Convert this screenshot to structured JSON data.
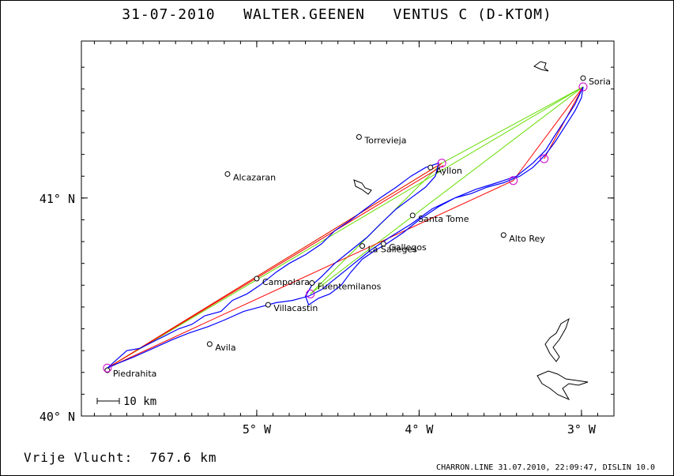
{
  "header": {
    "title": "31-07-2010   WALTER.GEENEN   VENTUS C (D-KTOM)"
  },
  "map": {
    "lon_range": [
      -6.08,
      -2.8
    ],
    "lat_range": [
      40.0,
      41.72
    ],
    "lat_ticks": [
      {
        "value": 41.0,
        "label": "41° N"
      },
      {
        "value": 40.0,
        "label": "40° N"
      }
    ],
    "lon_ticks": [
      {
        "value": -5.0,
        "label": "5° W"
      },
      {
        "value": -4.0,
        "label": "4° W"
      },
      {
        "value": -3.0,
        "label": "3° W"
      }
    ],
    "scale_label": "10 km",
    "colors": {
      "track": "#0000ff",
      "task_leg": "#ff0000",
      "optimized_leg": "#66dd00",
      "turnpoint": "#cc00cc",
      "frame": "#000000"
    },
    "towns": [
      {
        "name": "Soria",
        "lon": -2.99,
        "lat": 41.55
      },
      {
        "name": "Torrevieja",
        "lon": -4.37,
        "lat": 41.28
      },
      {
        "name": "Alcazaran",
        "lon": -5.18,
        "lat": 41.11
      },
      {
        "name": "Ayllon",
        "lon": -3.93,
        "lat": 41.14
      },
      {
        "name": "Santa Tome",
        "lon": -4.04,
        "lat": 40.92
      },
      {
        "name": "Alto Rey",
        "lon": -3.48,
        "lat": 40.83
      },
      {
        "name": "La Salleges",
        "lon": -4.35,
        "lat": 40.78
      },
      {
        "name": "Gallegos",
        "lon": -4.22,
        "lat": 40.79
      },
      {
        "name": "Campolara",
        "lon": -5.0,
        "lat": 40.63
      },
      {
        "name": "Fuentemilanos",
        "lon": -4.66,
        "lat": 40.61
      },
      {
        "name": "Villacastin",
        "lon": -4.93,
        "lat": 40.51
      },
      {
        "name": "Avila",
        "lon": -5.29,
        "lat": 40.33
      },
      {
        "name": "Piedrahita",
        "lon": -5.92,
        "lat": 40.21
      }
    ],
    "turnpoints": [
      {
        "lon": -5.92,
        "lat": 40.22
      },
      {
        "lon": -3.86,
        "lat": 41.16
      },
      {
        "lon": -2.99,
        "lat": 41.51
      },
      {
        "lon": -3.23,
        "lat": 41.18
      },
      {
        "lon": -3.42,
        "lat": 41.08
      },
      {
        "lon": -4.67,
        "lat": 40.56
      }
    ],
    "task_lines": [
      [
        [
          -5.92,
          40.22
        ],
        [
          -3.86,
          41.16
        ]
      ],
      [
        [
          -5.92,
          40.22
        ],
        [
          -3.85,
          41.15
        ]
      ],
      [
        [
          -5.92,
          40.22
        ],
        [
          -3.42,
          41.08
        ]
      ],
      [
        [
          -3.42,
          41.08
        ],
        [
          -2.99,
          41.51
        ]
      ],
      [
        [
          -3.23,
          41.18
        ],
        [
          -2.99,
          41.51
        ]
      ]
    ],
    "optimized_lines": [
      [
        [
          -5.92,
          40.22
        ],
        [
          -2.99,
          41.51
        ]
      ],
      [
        [
          -5.92,
          40.22
        ],
        [
          -3.86,
          41.16
        ]
      ],
      [
        [
          -3.86,
          41.16
        ],
        [
          -2.99,
          41.51
        ]
      ],
      [
        [
          -4.67,
          40.56
        ],
        [
          -3.86,
          41.16
        ]
      ],
      [
        [
          -4.67,
          40.56
        ],
        [
          -2.99,
          41.51
        ]
      ]
    ],
    "track": [
      [
        -5.92,
        40.22
      ],
      [
        -5.86,
        40.26
      ],
      [
        -5.8,
        40.3
      ],
      [
        -5.72,
        40.31
      ],
      [
        -5.64,
        40.34
      ],
      [
        -5.56,
        40.37
      ],
      [
        -5.48,
        40.4
      ],
      [
        -5.4,
        40.42
      ],
      [
        -5.32,
        40.46
      ],
      [
        -5.22,
        40.48
      ],
      [
        -5.15,
        40.53
      ],
      [
        -5.06,
        40.56
      ],
      [
        -4.98,
        40.6
      ],
      [
        -4.88,
        40.66
      ],
      [
        -4.8,
        40.7
      ],
      [
        -4.7,
        40.74
      ],
      [
        -4.6,
        40.79
      ],
      [
        -4.52,
        40.85
      ],
      [
        -4.42,
        40.9
      ],
      [
        -4.33,
        40.95
      ],
      [
        -4.24,
        41.0
      ],
      [
        -4.14,
        41.05
      ],
      [
        -4.05,
        41.1
      ],
      [
        -3.96,
        41.14
      ],
      [
        -3.88,
        41.16
      ],
      [
        -3.9,
        41.1
      ],
      [
        -3.96,
        41.05
      ],
      [
        -4.05,
        41.0
      ],
      [
        -4.14,
        40.95
      ],
      [
        -4.24,
        40.88
      ],
      [
        -4.32,
        40.82
      ],
      [
        -4.42,
        40.76
      ],
      [
        -4.52,
        40.7
      ],
      [
        -4.6,
        40.64
      ],
      [
        -4.66,
        40.6
      ],
      [
        -4.7,
        40.55
      ],
      [
        -4.68,
        40.51
      ],
      [
        -4.62,
        40.54
      ],
      [
        -4.55,
        40.56
      ],
      [
        -4.48,
        40.6
      ],
      [
        -4.42,
        40.66
      ],
      [
        -4.35,
        40.72
      ],
      [
        -4.27,
        40.76
      ],
      [
        -4.2,
        40.79
      ],
      [
        -4.1,
        40.84
      ],
      [
        -4.0,
        40.9
      ],
      [
        -3.88,
        40.96
      ],
      [
        -3.78,
        41.0
      ],
      [
        -3.68,
        41.02
      ],
      [
        -3.58,
        41.05
      ],
      [
        -3.48,
        41.07
      ],
      [
        -3.38,
        41.1
      ],
      [
        -3.3,
        41.14
      ],
      [
        -3.22,
        41.2
      ],
      [
        -3.16,
        41.26
      ],
      [
        -3.1,
        41.33
      ],
      [
        -3.04,
        41.4
      ],
      [
        -3.0,
        41.46
      ],
      [
        -2.99,
        41.51
      ],
      [
        -3.04,
        41.43
      ],
      [
        -3.1,
        41.36
      ],
      [
        -3.17,
        41.28
      ],
      [
        -3.22,
        41.22
      ],
      [
        -3.3,
        41.16
      ],
      [
        -3.4,
        41.1
      ],
      [
        -3.52,
        41.07
      ],
      [
        -3.65,
        41.04
      ],
      [
        -3.78,
        41.0
      ],
      [
        -3.92,
        40.95
      ],
      [
        -4.05,
        40.88
      ],
      [
        -4.18,
        40.82
      ],
      [
        -4.3,
        40.76
      ],
      [
        -4.4,
        40.7
      ],
      [
        -4.5,
        40.64
      ],
      [
        -4.6,
        40.58
      ],
      [
        -4.68,
        40.55
      ],
      [
        -4.78,
        40.53
      ],
      [
        -4.88,
        40.52
      ],
      [
        -4.98,
        40.5
      ],
      [
        -5.08,
        40.48
      ],
      [
        -5.2,
        40.44
      ],
      [
        -5.3,
        40.41
      ],
      [
        -5.42,
        40.38
      ],
      [
        -5.52,
        40.35
      ],
      [
        -5.64,
        40.31
      ],
      [
        -5.76,
        40.27
      ],
      [
        -5.86,
        40.24
      ],
      [
        -5.92,
        40.22
      ]
    ]
  },
  "footer": {
    "distance": "Vrije Vlucht:  767.6 km",
    "software": "CHARRON.LINE 31.07.2010, 22:09:47, DISLIN 10.0"
  }
}
